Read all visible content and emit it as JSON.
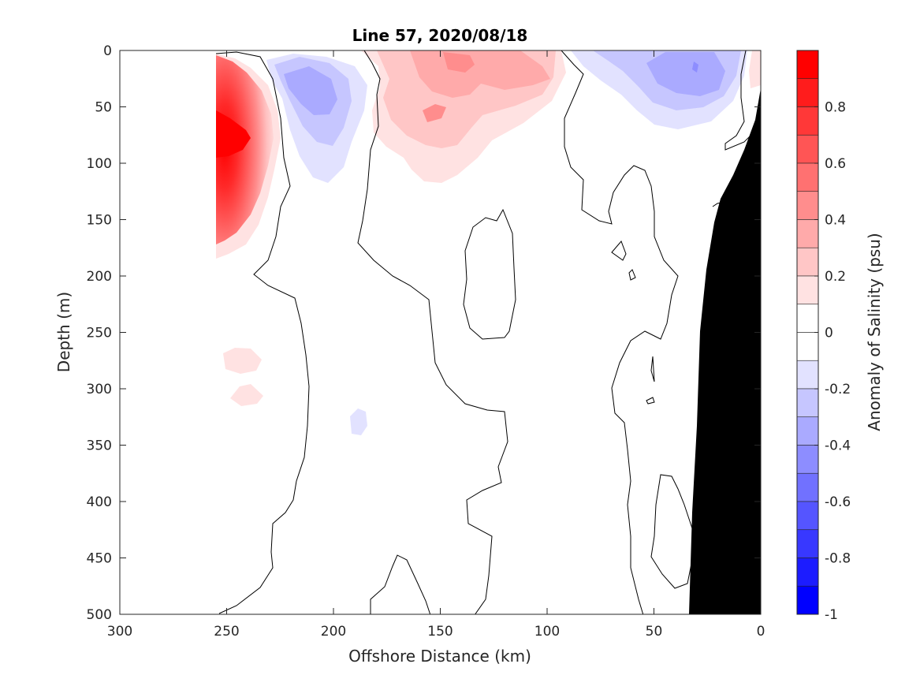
{
  "chart_data": {
    "type": "contour",
    "title": "Line 57, 2020/08/18",
    "xlabel": "Offshore Distance (km)",
    "ylabel": "Depth (m)",
    "xlim": [
      300,
      0
    ],
    "ylim": [
      0,
      500
    ],
    "x_reversed": true,
    "y_reversed": true,
    "x_ticks": [
      300,
      250,
      200,
      150,
      100,
      50,
      0
    ],
    "y_ticks": [
      0,
      50,
      100,
      150,
      200,
      250,
      300,
      350,
      400,
      450,
      500
    ],
    "x_tick_labels": [
      "300",
      "250",
      "200",
      "150",
      "100",
      "50",
      "0"
    ],
    "y_tick_labels": [
      "0",
      "50",
      "100",
      "150",
      "200",
      "250",
      "300",
      "350",
      "400",
      "450",
      "500"
    ],
    "colorbar": {
      "label": "Anomaly of Salinity (psu)",
      "range": [
        -1,
        1
      ],
      "tick_values": [
        0.8,
        0.6,
        0.4,
        0.2,
        0,
        -0.2,
        -0.4,
        -0.6,
        -0.8,
        -1
      ],
      "tick_labels": [
        "0.8",
        "0.6",
        "0.4",
        "0.2",
        "0",
        "-0.2",
        "-0.4",
        "-0.6",
        "-0.8",
        "-1"
      ],
      "levels": [
        {
          "min": 0.9,
          "max": 1.0,
          "color": "#ff0000"
        },
        {
          "min": 0.8,
          "max": 0.9,
          "color": "#ff1c1c"
        },
        {
          "min": 0.7,
          "max": 0.8,
          "color": "#ff3838"
        },
        {
          "min": 0.6,
          "max": 0.7,
          "color": "#ff5555"
        },
        {
          "min": 0.5,
          "max": 0.6,
          "color": "#ff7171"
        },
        {
          "min": 0.4,
          "max": 0.5,
          "color": "#ff8d8d"
        },
        {
          "min": 0.3,
          "max": 0.4,
          "color": "#ffaaaa"
        },
        {
          "min": 0.2,
          "max": 0.3,
          "color": "#ffc6c6"
        },
        {
          "min": 0.1,
          "max": 0.2,
          "color": "#ffe2e2"
        },
        {
          "min": 0.0,
          "max": 0.1,
          "color": "#ffffff"
        },
        {
          "min": -0.1,
          "max": 0.0,
          "color": "#ffffff"
        },
        {
          "min": -0.2,
          "max": -0.1,
          "color": "#e2e2ff"
        },
        {
          "min": -0.3,
          "max": -0.2,
          "color": "#c6c6ff"
        },
        {
          "min": -0.4,
          "max": -0.3,
          "color": "#aaaaff"
        },
        {
          "min": -0.5,
          "max": -0.4,
          "color": "#8d8dff"
        },
        {
          "min": -0.6,
          "max": -0.5,
          "color": "#7171ff"
        },
        {
          "min": -0.7,
          "max": -0.6,
          "color": "#5555ff"
        },
        {
          "min": -0.8,
          "max": -0.7,
          "color": "#3838ff"
        },
        {
          "min": -0.9,
          "max": -0.8,
          "color": "#1c1cff"
        },
        {
          "min": -1.0,
          "max": -0.9,
          "color": "#0000ff"
        }
      ]
    },
    "features": [
      {
        "name": "positive-core",
        "anomaly_psu": 0.95,
        "center_km": 252,
        "center_depth_m": 70
      },
      {
        "name": "negative-eddy-west",
        "anomaly_psu": -0.35,
        "center_km": 210,
        "center_depth_m": 40
      },
      {
        "name": "positive-eddy-center",
        "anomaly_psu": 0.35,
        "center_km": 145,
        "center_depth_m": 25
      },
      {
        "name": "negative-eddy-east",
        "anomaly_psu": -0.4,
        "center_km": 30,
        "center_depth_m": 20
      },
      {
        "name": "bathymetry",
        "description_units": "seafloor at 0 km from ~35 m, reaching ~33 km at 500 m"
      }
    ]
  }
}
